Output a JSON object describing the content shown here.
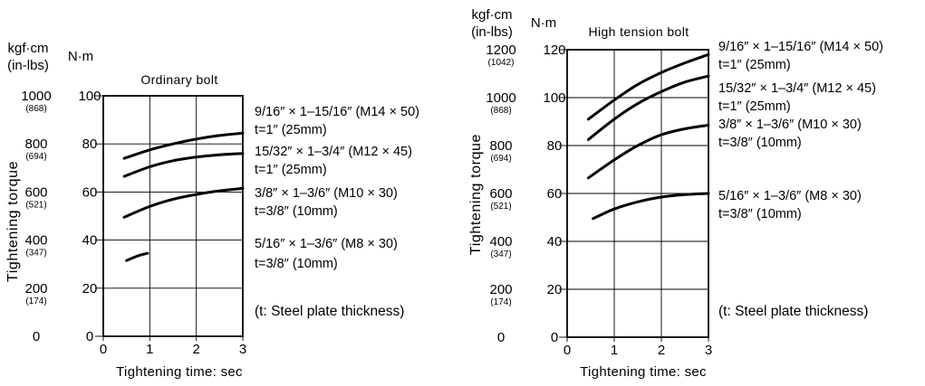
{
  "chart_data": [
    {
      "type": "line",
      "title": "Ordinary bolt",
      "xlabel": "Tightening time: sec",
      "ylabel": "Tightening torque",
      "y_units_primary": "N·m",
      "y_units_secondary": "kgf·cm",
      "y_units_secondary_alt": "(in-lbs)",
      "xlim": [
        0,
        3
      ],
      "ylim": [
        0,
        100
      ],
      "x_ticks": [
        "0",
        "1",
        "2",
        "3"
      ],
      "y_ticks_nm": [
        "0",
        "20",
        "40",
        "60",
        "80",
        "100"
      ],
      "y_ticks_kgf": [
        "0",
        "200",
        "400",
        "600",
        "800",
        "1000"
      ],
      "y_ticks_inlbs": [
        "",
        "(174)",
        "(347)",
        "(521)",
        "(694)",
        "(868)"
      ],
      "grid": true,
      "series": [
        {
          "name": "9/16″ × 1–15/16″ (M14 × 50)",
          "note": "t=1″  (25mm)",
          "x": [
            0.45,
            1.0,
            1.5,
            2.0,
            2.5,
            3.0
          ],
          "y": [
            74,
            77.5,
            80,
            82,
            83.5,
            84.5
          ]
        },
        {
          "name": "15/32″ × 1–3/4″ (M12 × 45)",
          "note": "t=1″  (25mm)",
          "x": [
            0.45,
            1.0,
            1.5,
            2.0,
            2.5,
            3.0
          ],
          "y": [
            66.5,
            70.5,
            73,
            74.5,
            75.5,
            76
          ]
        },
        {
          "name": "3/8″ × 1–3/6″ (M10 × 30)",
          "note": "t=3/8″  (10mm)",
          "x": [
            0.45,
            1.0,
            1.5,
            2.0,
            2.5,
            3.0
          ],
          "y": [
            49.5,
            54,
            57,
            59,
            60.5,
            61.5
          ]
        },
        {
          "name": "5/16″ × 1–3/6″ (M8 × 30)",
          "note": "t=3/8″  (10mm)",
          "x": [
            0.5,
            0.75,
            0.95
          ],
          "y": [
            31.5,
            33.5,
            34.5
          ]
        }
      ]
    },
    {
      "type": "line",
      "title": "High  tension  bolt",
      "xlabel": "Tightening time: sec",
      "ylabel": "Tightening torque",
      "y_units_primary": "N·m",
      "y_units_secondary": "kgf·cm",
      "y_units_secondary_alt": "(in-lbs)",
      "xlim": [
        0,
        3
      ],
      "ylim": [
        0,
        120
      ],
      "x_ticks": [
        "0",
        "1",
        "2",
        "3"
      ],
      "y_ticks_nm": [
        "0",
        "20",
        "40",
        "60",
        "80",
        "100",
        "120"
      ],
      "y_ticks_kgf": [
        "0",
        "200",
        "400",
        "600",
        "800",
        "1000",
        "1200"
      ],
      "y_ticks_inlbs": [
        "",
        "(174)",
        "(347)",
        "(521)",
        "(694)",
        "(868)",
        "(1042)"
      ],
      "grid": true,
      "series": [
        {
          "name": "9/16″ × 1–15/16″ (M14 × 50)",
          "note": "t=1″  (25mm)",
          "x": [
            0.45,
            1.0,
            1.5,
            2.0,
            2.5,
            3.0
          ],
          "y": [
            91,
            99,
            105.5,
            110.5,
            114.5,
            118
          ]
        },
        {
          "name": "15/32″ × 1–3/4″ (M12 × 45)",
          "note": "t=1″  (25mm)",
          "x": [
            0.45,
            1.0,
            1.5,
            2.0,
            2.5,
            3.0
          ],
          "y": [
            82.5,
            91,
            97.5,
            102.5,
            106.5,
            109
          ]
        },
        {
          "name": "3/8″ × 1–3/6″ (M10 × 30)",
          "note": "t=3/8″  (10mm)",
          "x": [
            0.45,
            1.0,
            1.5,
            2.0,
            2.5,
            3.0
          ],
          "y": [
            66.5,
            74,
            80,
            84.5,
            87,
            88.5
          ]
        },
        {
          "name": "5/16″ × 1–3/6″ (M8 × 30)",
          "note": "t=3/8″  (10mm)",
          "x": [
            0.55,
            1.0,
            1.5,
            2.0,
            2.5,
            3.0
          ],
          "y": [
            49.5,
            53.5,
            56.5,
            58.5,
            59.5,
            60
          ]
        }
      ]
    }
  ],
  "footnote": "(t: Steel plate thickness)"
}
